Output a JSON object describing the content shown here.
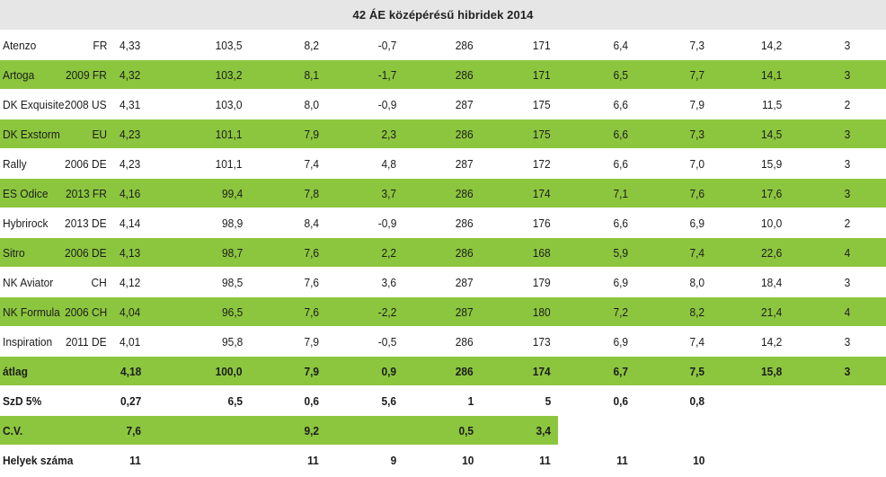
{
  "title": "42  ÁE középérésű hibridek 2014",
  "rows": [
    {
      "name": "Atenzo",
      "year": "FR",
      "values": [
        "4,33",
        "103,5",
        "8,2",
        "-0,7",
        "286",
        "171",
        "6,4",
        "7,3",
        "14,2",
        "3"
      ]
    },
    {
      "name": "Artoga",
      "year": "2009 FR",
      "values": [
        "4,32",
        "103,2",
        "8,1",
        "-1,7",
        "286",
        "171",
        "6,5",
        "7,7",
        "14,1",
        "3"
      ]
    },
    {
      "name": "DK Exquisite",
      "year": "2008 US",
      "values": [
        "4,31",
        "103,0",
        "8,0",
        "-0,9",
        "287",
        "175",
        "6,6",
        "7,9",
        "11,5",
        "2"
      ]
    },
    {
      "name": "DK Exstorm",
      "year": "EU",
      "values": [
        "4,23",
        "101,1",
        "7,9",
        "2,3",
        "286",
        "175",
        "6,6",
        "7,3",
        "14,5",
        "3"
      ]
    },
    {
      "name": "Rally",
      "year": "2006 DE",
      "values": [
        "4,23",
        "101,1",
        "7,4",
        "4,8",
        "287",
        "172",
        "6,6",
        "7,0",
        "15,9",
        "3"
      ]
    },
    {
      "name": "ES Odice",
      "year": "2013 FR",
      "values": [
        "4,16",
        "99,4",
        "7,8",
        "3,7",
        "286",
        "174",
        "7,1",
        "7,6",
        "17,6",
        "3"
      ]
    },
    {
      "name": "Hybrirock",
      "year": "2013 DE",
      "values": [
        "4,14",
        "98,9",
        "8,4",
        "-0,9",
        "286",
        "176",
        "6,6",
        "6,9",
        "10,0",
        "2"
      ]
    },
    {
      "name": "Sitro",
      "year": "2006 DE",
      "values": [
        "4,13",
        "98,7",
        "7,6",
        "2,2",
        "286",
        "168",
        "5,9",
        "7,4",
        "22,6",
        "4"
      ]
    },
    {
      "name": "NK Aviator",
      "year": "CH",
      "values": [
        "4,12",
        "98,5",
        "7,6",
        "3,6",
        "287",
        "179",
        "6,9",
        "8,0",
        "18,4",
        "3"
      ]
    },
    {
      "name": "NK Formula",
      "year": "2006 CH",
      "values": [
        "4,04",
        "96,5",
        "7,6",
        "-2,2",
        "287",
        "180",
        "7,2",
        "8,2",
        "21,4",
        "4"
      ]
    },
    {
      "name": "Inspiration",
      "year": "2011 DE",
      "values": [
        "4,01",
        "95,8",
        "7,9",
        "-0,5",
        "286",
        "173",
        "6,9",
        "7,4",
        "14,2",
        "3"
      ]
    }
  ],
  "summary": [
    {
      "name": "átlag",
      "values": [
        "4,18",
        "100,0",
        "7,9",
        "0,9",
        "286",
        "174",
        "6,7",
        "7,5",
        "15,8",
        "3"
      ]
    },
    {
      "name": "SzD 5%",
      "values": [
        "0,27",
        "6,5",
        "0,6",
        "5,6",
        "1",
        "5",
        "0,6",
        "0,8",
        "",
        ""
      ]
    },
    {
      "name": "C.V.",
      "values": [
        "7,6",
        "",
        "9,2",
        "",
        "0,5",
        "3,4",
        "",
        "",
        "",
        ""
      ]
    },
    {
      "name": "Helyek száma",
      "values": [
        "11",
        "",
        "11",
        "9",
        "10",
        "11",
        "11",
        "10",
        "",
        ""
      ]
    }
  ],
  "colors": {
    "green": "#8cc63f",
    "header_gray": "#e6e6e6",
    "text": "#1c1c1c"
  }
}
